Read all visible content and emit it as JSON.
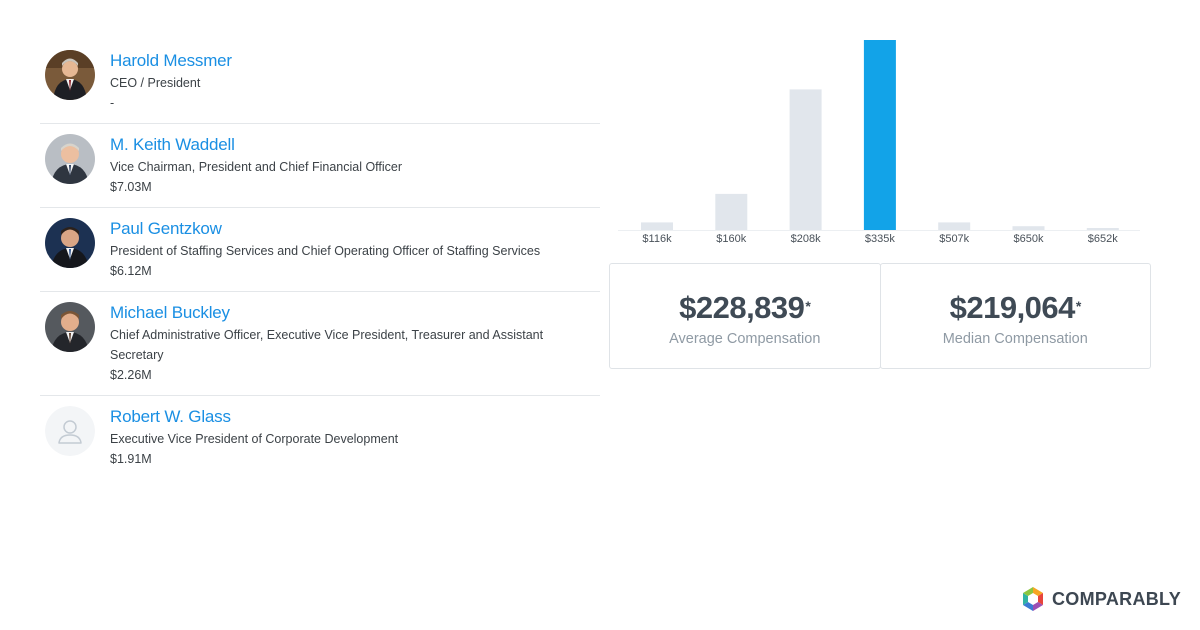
{
  "executives": [
    {
      "name": "Harold Messmer",
      "title": "CEO / President",
      "compensation": "-",
      "avatar": "photo"
    },
    {
      "name": "M. Keith Waddell",
      "title": "Vice Chairman, President and Chief Financial Officer",
      "compensation": "$7.03M",
      "avatar": "photo"
    },
    {
      "name": "Paul Gentzkow",
      "title": "President of Staffing Services and Chief Operating Officer of Staffing Services",
      "compensation": "$6.12M",
      "avatar": "photo"
    },
    {
      "name": "Michael Buckley",
      "title_line1": "Chief Administrative Officer, Executive Vice President, Treasurer and Assistant",
      "title_line2": "Secretary",
      "compensation": "$2.26M",
      "avatar": "photo"
    },
    {
      "name": "Robert W. Glass",
      "title": "Executive Vice President of Corporate Development",
      "compensation": "$1.91M",
      "avatar": "placeholder"
    }
  ],
  "chart_data": {
    "type": "bar",
    "title": "",
    "xlabel": "",
    "ylabel": "",
    "categories": [
      "$116k",
      "$160k",
      "$208k",
      "$335k",
      "$507k",
      "$650k",
      "$652k"
    ],
    "values": [
      4,
      19,
      74,
      100,
      4,
      2,
      0.5
    ],
    "highlight_index": 3,
    "ylim": [
      0,
      100
    ],
    "colors": {
      "default": "#e1e6ec",
      "highlight": "#12a3e8"
    }
  },
  "stats": {
    "average": {
      "value": "$228,839",
      "marker": "*",
      "label": "Average Compensation"
    },
    "median": {
      "value": "$219,064",
      "marker": "*",
      "label": "Median Compensation"
    }
  },
  "brand": {
    "name": "COMPARABLY",
    "icon": "comparably-logo-icon"
  }
}
